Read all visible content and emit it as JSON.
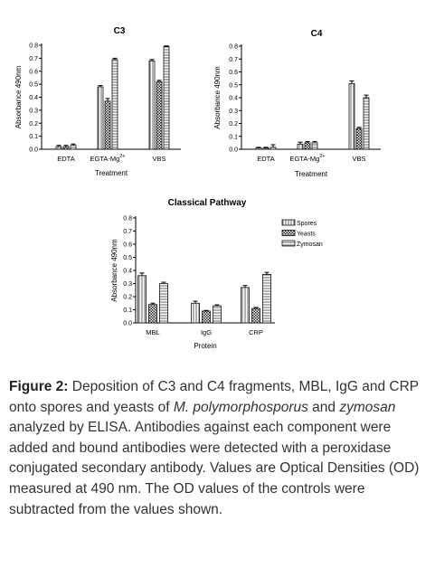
{
  "caption": {
    "label": "Figure 2:",
    "text_1": " Deposition of C3 and C4 fragments, MBL, IgG and CRP onto spores and yeasts of ",
    "species": "M. polymorphosporus",
    "text_2": " and ",
    "zymosan": "zymosan",
    "text_3": " analyzed by ELISA. Antibodies against each component were added and bound antibodies were detected with a peroxidase conjugated secondary antibody. Values are Optical Densities (OD) measured at 490 nm. The OD values of the controls were subtracted from the values shown."
  },
  "chart_data": [
    {
      "id": "c3",
      "type": "bar",
      "title": "C3",
      "xlabel": "Treatment",
      "ylabel": "Absorbance 490nm",
      "ylim": [
        0,
        0.8
      ],
      "yticks": [
        "0.0",
        "0.1",
        "0.2",
        "0.3",
        "0.4",
        "0.5",
        "0.6",
        "0.7",
        "0.8"
      ],
      "categories": [
        "EDTA",
        "EGTA-Mg",
        "VBS"
      ],
      "category_superscript": [
        "",
        "2+",
        ""
      ],
      "series": [
        {
          "values": [
            0.02,
            0.48,
            0.68
          ],
          "errors": [
            0.01,
            0.01,
            0.01
          ]
        },
        {
          "values": [
            0.02,
            0.37,
            0.52
          ],
          "errors": [
            0.01,
            0.02,
            0.01
          ]
        },
        {
          "values": [
            0.03,
            0.69,
            0.79
          ],
          "errors": [
            0.01,
            0.01,
            0.005
          ]
        }
      ]
    },
    {
      "id": "c4",
      "type": "bar",
      "title": "C4",
      "xlabel": "Treatment",
      "ylabel": "Absorbance 490nm",
      "ylim": [
        0,
        0.8
      ],
      "yticks": [
        "0.0",
        "0.1",
        "0.2",
        "0.3",
        "0.4",
        "0.5",
        "0.6",
        "0.7",
        "0.8"
      ],
      "categories": [
        "EDTA",
        "EGTA-Mg",
        "VBS"
      ],
      "category_superscript": [
        "",
        "2+",
        ""
      ],
      "series": [
        {
          "values": [
            0.01,
            0.04,
            0.51
          ],
          "errors": [
            0.005,
            0.015,
            0.02
          ]
        },
        {
          "values": [
            0.01,
            0.05,
            0.16
          ],
          "errors": [
            0.005,
            0.01,
            0.01
          ]
        },
        {
          "values": [
            0.015,
            0.05,
            0.4
          ],
          "errors": [
            0.02,
            0.01,
            0.02
          ]
        }
      ]
    },
    {
      "id": "classical",
      "type": "bar",
      "title": "Classical Pathway",
      "xlabel": "Protein",
      "ylabel": "Absorbance 490nm",
      "ylim": [
        0,
        0.8
      ],
      "yticks": [
        "0.0",
        "0.1",
        "0.2",
        "0.3",
        "0.4",
        "0.5",
        "0.6",
        "0.7",
        "0.8"
      ],
      "categories": [
        "MBL",
        "IgG",
        "CRP"
      ],
      "category_superscript": [
        "",
        "",
        ""
      ],
      "legend_position": "top-right",
      "series": [
        {
          "name": "Spores",
          "values": [
            0.36,
            0.15,
            0.27
          ],
          "errors": [
            0.02,
            0.015,
            0.015
          ]
        },
        {
          "name": "Yeasts",
          "values": [
            0.14,
            0.09,
            0.11
          ],
          "errors": [
            0.01,
            0.005,
            0.008
          ]
        },
        {
          "name": "Zymosan",
          "values": [
            0.3,
            0.13,
            0.37
          ],
          "errors": [
            0.01,
            0.008,
            0.015
          ]
        }
      ]
    }
  ]
}
